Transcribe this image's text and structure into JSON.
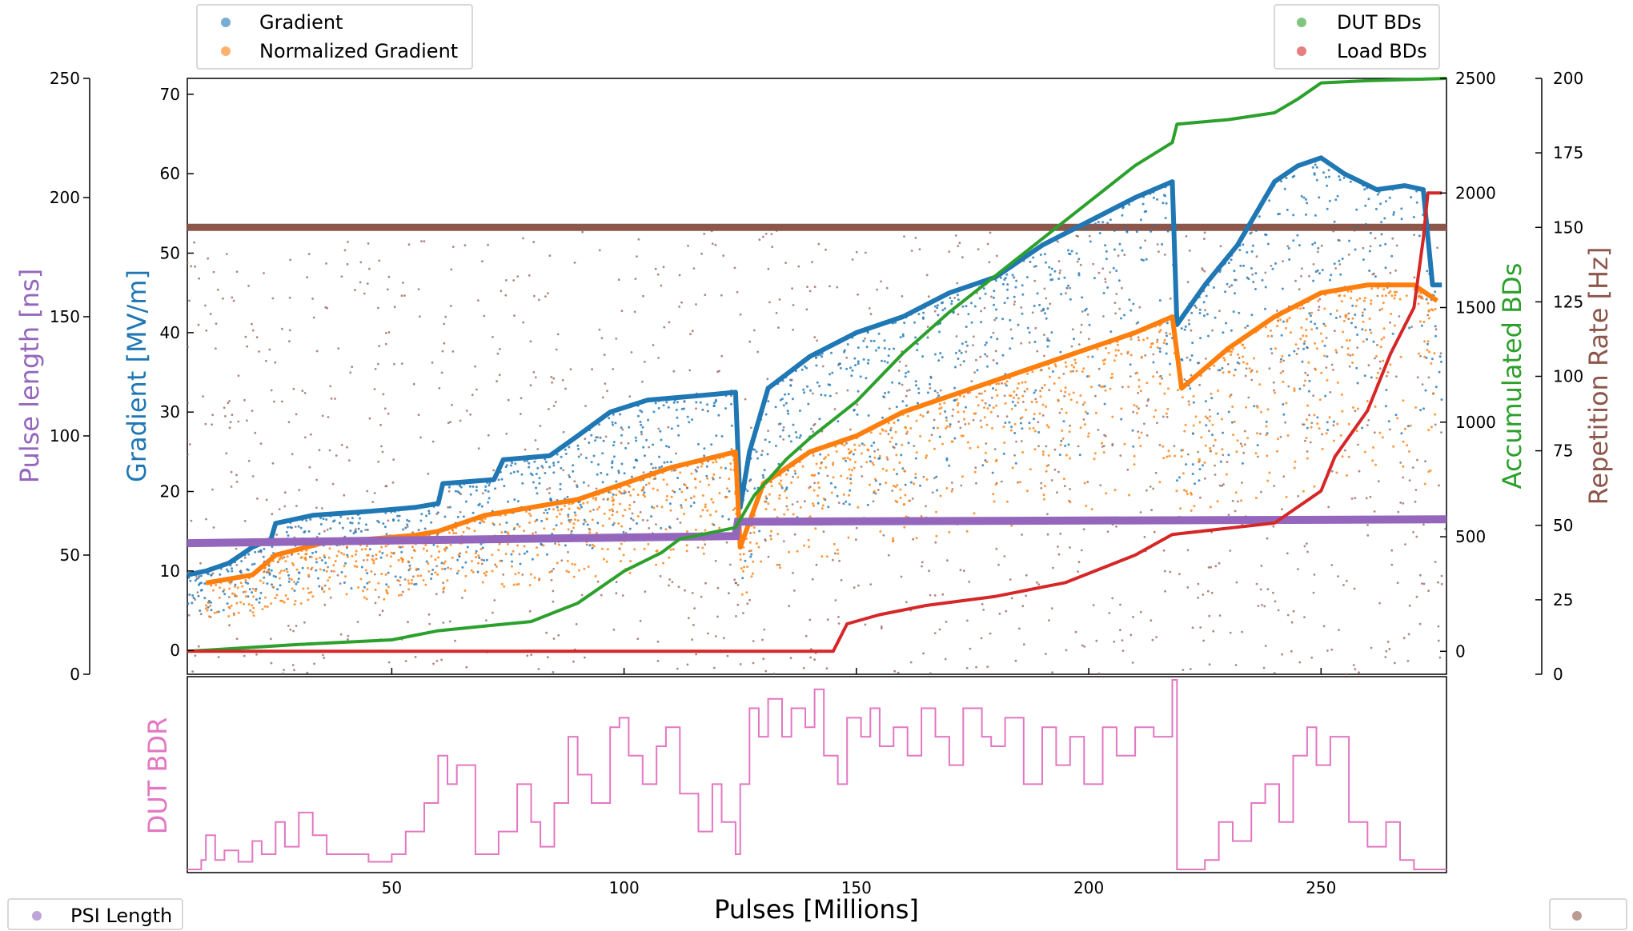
{
  "colors": {
    "gradient": "#1f77b4",
    "normalized_gradient": "#ff7f0e",
    "dut_bds": "#2ca02c",
    "load_bds": "#d62728",
    "pulse_length": "#9467bd",
    "repetition_rate": "#8c564b",
    "dut_bdr": "#e377c2"
  },
  "legends": {
    "top_left": [
      "Gradient",
      "Normalized Gradient"
    ],
    "top_right": [
      "DUT BDs",
      "Load BDs"
    ],
    "bottom_left": [
      "PSI Length"
    ]
  },
  "chart_data": [
    {
      "type": "scatter",
      "title": "",
      "xlabel": "",
      "xlim": [
        6,
        277
      ],
      "axes": {
        "gradient": {
          "label": "Gradient [MV/m]",
          "ylim": [
            -3,
            72
          ],
          "ticks": [
            0,
            10,
            20,
            30,
            40,
            50,
            60,
            70
          ]
        },
        "pulse_length": {
          "label": "Pulse length [ns]",
          "ylim": [
            0,
            250
          ],
          "ticks": [
            0,
            50,
            100,
            150,
            200,
            250
          ]
        },
        "accumulated_bds": {
          "label": "Accumulated BDs",
          "ylim": [
            -100,
            2500
          ],
          "ticks": [
            0,
            500,
            1000,
            1500,
            2000,
            2500
          ]
        },
        "repetition_rate": {
          "label": "Repetition Rate [Hz]",
          "ylim": [
            0,
            200
          ],
          "ticks": [
            0,
            25,
            50,
            75,
            100,
            125,
            150,
            175,
            200
          ]
        }
      },
      "series": [
        {
          "name": "Gradient",
          "axis": "gradient",
          "x": [
            6,
            10,
            15,
            20,
            24,
            25,
            33,
            45,
            55,
            60,
            61,
            72,
            74,
            84,
            90,
            97,
            105,
            115,
            124,
            125,
            127,
            131,
            140,
            150,
            160,
            170,
            180,
            190,
            200,
            210,
            218,
            219,
            225,
            232,
            240,
            245,
            250,
            255,
            262,
            268,
            272,
            274,
            276
          ],
          "y": [
            9.5,
            10,
            11,
            13,
            14,
            16,
            17,
            17.5,
            18,
            18.5,
            21,
            21.5,
            24,
            24.5,
            27,
            30,
            31.5,
            32,
            32.5,
            18,
            25,
            33,
            37,
            40,
            42,
            45,
            47,
            51,
            54,
            57,
            59,
            41,
            46,
            51,
            59,
            61,
            62,
            60,
            58,
            58.5,
            58,
            46,
            46
          ]
        },
        {
          "name": "Normalized Gradient",
          "axis": "gradient",
          "x": [
            10,
            15,
            20,
            25,
            35,
            45,
            55,
            60,
            70,
            80,
            90,
            100,
            110,
            124,
            125,
            130,
            140,
            150,
            160,
            170,
            180,
            190,
            200,
            210,
            218,
            220,
            222,
            230,
            240,
            250,
            260,
            270,
            275
          ],
          "y": [
            8.5,
            9,
            9.5,
            12,
            13.5,
            14,
            14.5,
            15,
            17,
            18,
            19,
            21,
            23,
            25,
            13,
            21,
            25,
            27,
            30,
            32,
            34,
            36,
            38,
            40,
            42,
            33,
            34,
            38,
            42,
            45,
            46,
            46,
            44
          ]
        },
        {
          "name": "PSI Length",
          "axis": "pulse_length",
          "x": [
            6,
            124,
            124.5,
            277
          ],
          "y": [
            55,
            58,
            64,
            65
          ]
        },
        {
          "name": "DUT BDs",
          "axis": "accumulated_bds",
          "x": [
            6,
            30,
            50,
            60,
            70,
            80,
            85,
            90,
            100,
            108,
            112,
            124,
            128,
            135,
            140,
            150,
            160,
            170,
            180,
            190,
            200,
            210,
            218,
            219,
            230,
            240,
            245,
            250,
            260,
            277
          ],
          "y": [
            0,
            30,
            50,
            90,
            110,
            130,
            170,
            210,
            350,
            430,
            490,
            540,
            680,
            840,
            930,
            1090,
            1300,
            1480,
            1640,
            1800,
            1960,
            2120,
            2220,
            2300,
            2320,
            2350,
            2410,
            2480,
            2490,
            2500
          ]
        },
        {
          "name": "Load BDs",
          "axis": "accumulated_bds",
          "x": [
            6,
            100,
            145,
            148,
            155,
            165,
            180,
            190,
            195,
            210,
            218,
            240,
            250,
            253,
            260,
            265,
            270,
            272,
            273,
            276
          ],
          "y": [
            0,
            0,
            0,
            120,
            160,
            200,
            240,
            280,
            300,
            420,
            510,
            560,
            700,
            850,
            1050,
            1300,
            1500,
            1800,
            2000,
            2000
          ]
        },
        {
          "name": "Repetition Rate",
          "axis": "repetition_rate",
          "x": [
            6,
            277
          ],
          "y": [
            150,
            150
          ]
        }
      ]
    },
    {
      "type": "line",
      "title": "",
      "xlabel": "Pulses [Millions]",
      "ylabel": "DUT BDR",
      "xlim": [
        6,
        277
      ],
      "xticks": [
        50,
        100,
        150,
        200,
        250
      ],
      "ylim": [
        0,
        100
      ],
      "series": [
        {
          "name": "DUT BDR",
          "x": [
            6,
            9,
            10,
            12,
            14,
            17,
            20,
            22,
            25,
            27,
            30,
            33,
            36,
            45,
            50,
            53,
            57,
            60,
            62,
            64,
            68,
            73,
            77,
            80,
            82,
            85,
            88,
            90,
            93,
            97,
            99,
            101,
            104,
            107,
            109,
            112,
            116,
            119,
            121,
            124,
            125,
            127,
            129,
            131,
            134,
            136,
            139,
            141,
            143,
            146,
            148,
            151,
            153,
            155,
            158,
            161,
            164,
            167,
            170,
            173,
            177,
            179,
            182,
            186,
            190,
            193,
            196,
            199,
            203,
            206,
            210,
            214,
            218,
            219,
            221,
            225,
            228,
            231,
            235,
            238,
            241,
            244,
            247,
            249,
            252,
            256,
            260,
            264,
            267,
            270,
            273,
            277
          ],
          "y": [
            0,
            5,
            18,
            5,
            10,
            4,
            15,
            8,
            25,
            12,
            30,
            18,
            8,
            4,
            8,
            20,
            35,
            60,
            45,
            55,
            8,
            20,
            45,
            25,
            12,
            35,
            70,
            50,
            35,
            75,
            80,
            60,
            45,
            65,
            75,
            40,
            20,
            45,
            25,
            8,
            45,
            85,
            70,
            90,
            70,
            85,
            75,
            95,
            60,
            45,
            80,
            70,
            85,
            65,
            75,
            60,
            85,
            70,
            55,
            85,
            70,
            65,
            80,
            45,
            75,
            55,
            70,
            45,
            75,
            60,
            75,
            70,
            100,
            0,
            0,
            5,
            25,
            15,
            35,
            45,
            25,
            60,
            75,
            55,
            70,
            25,
            12,
            25,
            5,
            0,
            0,
            0
          ]
        }
      ]
    }
  ]
}
